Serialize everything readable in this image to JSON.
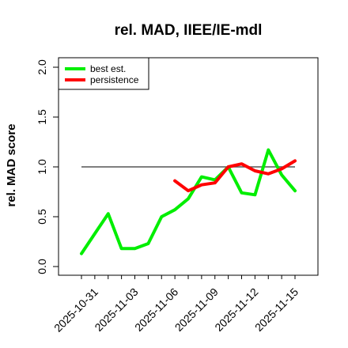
{
  "chart_data": {
    "type": "line",
    "title": "rel. MAD, IIEE/IE-mdl",
    "xlabel": "",
    "ylabel": "rel. MAD score",
    "ylim": [
      0.0,
      2.0
    ],
    "y_ticks": [
      0.0,
      0.5,
      1.0,
      1.5,
      2.0
    ],
    "y_tick_labels": [
      "0.0",
      "0.5",
      "1.0",
      "1.5",
      "2.0"
    ],
    "x_tick_labels": [
      "2025-10-31",
      "2025-11-03",
      "2025-11-06",
      "2025-11-09",
      "2025-11-12",
      "2025-11-15"
    ],
    "x": [
      "2025-10-30",
      "2025-10-31",
      "2025-11-01",
      "2025-11-02",
      "2025-11-03",
      "2025-11-04",
      "2025-11-05",
      "2025-11-06",
      "2025-11-07",
      "2025-11-08",
      "2025-11-09",
      "2025-11-10",
      "2025-11-11",
      "2025-11-12",
      "2025-11-13",
      "2025-11-14",
      "2025-11-15"
    ],
    "reference_line": {
      "y": 1.0,
      "x_from": "2025-10-30",
      "x_to": "2025-11-15",
      "color": "#555555"
    },
    "legend": {
      "position": "top-left",
      "box": true
    },
    "grid": false,
    "series": [
      {
        "name": "best est.",
        "color": "#00ee00",
        "values": [
          0.13,
          0.33,
          0.53,
          0.18,
          0.18,
          0.23,
          0.5,
          0.57,
          0.68,
          0.9,
          0.87,
          1.0,
          0.74,
          0.72,
          1.17,
          0.92,
          0.76
        ]
      },
      {
        "name": "persistence",
        "color": "#ff0000",
        "values": [
          null,
          null,
          null,
          null,
          null,
          null,
          null,
          0.86,
          0.76,
          0.82,
          0.84,
          1.0,
          1.03,
          0.96,
          0.93,
          0.98,
          1.06
        ]
      }
    ]
  }
}
